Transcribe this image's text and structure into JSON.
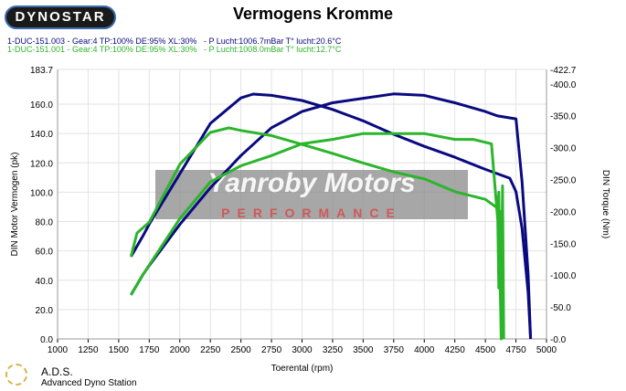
{
  "logo_text": "DYNOSTAR",
  "chart_data": {
    "type": "line",
    "title": "Vermogens Kromme",
    "xlabel": "Toerental (rpm)",
    "ylabel": "DIN Motor Vermogen (pk)",
    "y2label": "DIN Torque (Nm)",
    "xlim": [
      1000,
      5000
    ],
    "ylim": [
      0,
      183.7
    ],
    "y2lim": [
      0,
      422.7
    ],
    "xticks": [
      "1000",
      "1250",
      "1500",
      "1750",
      "2000",
      "2250",
      "2500",
      "2750",
      "3000",
      "3250",
      "3500",
      "3750",
      "4000",
      "4250",
      "4500",
      "4750",
      "5000"
    ],
    "yticks": [
      "0.0",
      "20.0",
      "40.0",
      "60.0",
      "80.0",
      "100.0",
      "120.0",
      "140.0",
      "160.0",
      "183.7"
    ],
    "y2ticks": [
      "-0.0",
      "-50.0",
      "-100.0",
      "-150.0",
      "-200.0",
      "-250.0",
      "-300.0",
      "-350.0",
      "-400.0",
      "-422.7"
    ],
    "grid": true,
    "runs": [
      {
        "label": "1-DUC-151.003 - Gear:4 TP:100% DE:95% XL:30%   - P Lucht:1006.7mBar T° lucht:20.6°C",
        "color": "#0a0a80"
      },
      {
        "label": "1-DUC-151.001 - Gear:4 TP:100% DE:95% XL:30%   - P Lucht:1008.0mBar T° lucht:12.7°C",
        "color": "#2bb52b"
      }
    ],
    "series": [
      {
        "name": "1-DUC-151.003 torque",
        "axis": "right",
        "color": "#0a0a80",
        "x": [
          1600,
          1700,
          1750,
          2000,
          2250,
          2500,
          2600,
          2750,
          3000,
          3250,
          3500,
          3750,
          4000,
          4250,
          4500,
          4700,
          4750,
          4800,
          4850,
          4870
        ],
        "y": [
          129,
          162,
          180,
          259,
          338,
          378,
          384,
          382,
          374,
          360,
          342,
          321,
          302,
          285,
          266,
          252,
          231,
          173,
          73,
          0
        ]
      },
      {
        "name": "1-DUC-151.003 power",
        "axis": "left",
        "color": "#0a0a80",
        "x": [
          1600,
          1700,
          1750,
          2000,
          2250,
          2500,
          2750,
          3000,
          3250,
          3500,
          3750,
          4000,
          4250,
          4500,
          4600,
          4750,
          4800,
          4850,
          4870
        ],
        "y": [
          30,
          44,
          50,
          78,
          103,
          125,
          144,
          155,
          161,
          164,
          167,
          166,
          161,
          155,
          152,
          150,
          107,
          44,
          0
        ]
      },
      {
        "name": "1-DUC-151.001 torque",
        "axis": "right",
        "color": "#2bb52b",
        "x": [
          1600,
          1650,
          1750,
          2000,
          2250,
          2400,
          2500,
          2750,
          3000,
          3250,
          3500,
          3750,
          4000,
          4250,
          4500,
          4600,
          4610,
          4620,
          4630,
          4640,
          4650
        ],
        "y": [
          129,
          166,
          183,
          274,
          324,
          331,
          327,
          319,
          305,
          291,
          276,
          262,
          251,
          231,
          219,
          205,
          80,
          200,
          0,
          240,
          0
        ]
      },
      {
        "name": "1-DUC-151.001 power",
        "axis": "left",
        "color": "#2bb52b",
        "x": [
          1600,
          1700,
          2000,
          2250,
          2500,
          2750,
          3000,
          3250,
          3500,
          3750,
          4000,
          4250,
          4400,
          4550,
          4600,
          4610,
          4620,
          4630
        ],
        "y": [
          30,
          44,
          82,
          107,
          118,
          125,
          133,
          136,
          140,
          140,
          140,
          136,
          136,
          133,
          82,
          100,
          40,
          0
        ]
      }
    ]
  },
  "watermark": {
    "name": "Yanroby Motors",
    "sub": "PERFORMANCE"
  },
  "footer": {
    "brand": "A.D.S.",
    "subtitle": "Advanced Dyno Station"
  }
}
